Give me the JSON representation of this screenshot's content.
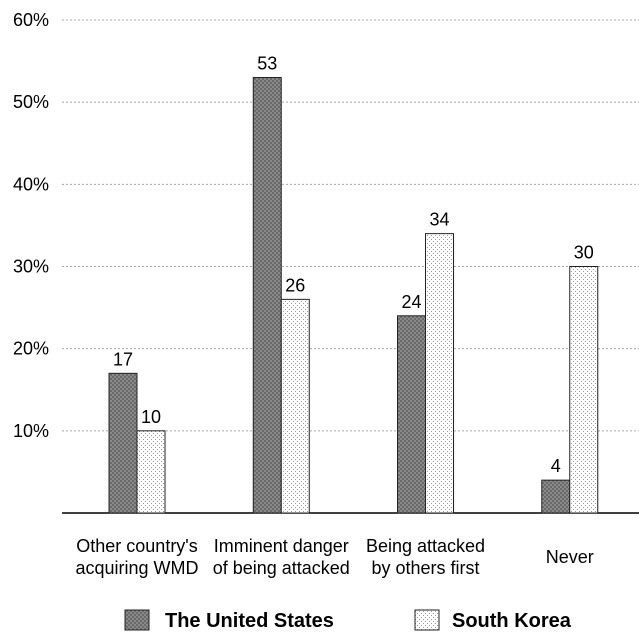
{
  "chart_data": {
    "type": "bar",
    "categories": [
      [
        "Other country's",
        "acquiring WMD"
      ],
      [
        "Imminent danger",
        "of being attacked"
      ],
      [
        "Being attacked",
        "by others first"
      ],
      [
        "Never"
      ]
    ],
    "series": [
      {
        "name": "The United States",
        "values": [
          17,
          53,
          24,
          4
        ],
        "labels": [
          "17",
          "53",
          "24",
          "4"
        ],
        "fill": "dark-dotted"
      },
      {
        "name": "South Korea",
        "values": [
          10,
          26,
          34,
          30
        ],
        "labels": [
          "10",
          "26",
          "34",
          "30"
        ],
        "fill": "light-dotted"
      }
    ],
    "yticks": [
      10,
      20,
      30,
      40,
      50,
      60
    ],
    "ytick_labels": [
      "10%",
      "20%",
      "30%",
      "40%",
      "50%",
      "60%"
    ],
    "ylim": [
      0,
      60
    ],
    "grid": true,
    "legend_position": "bottom",
    "title": "",
    "xlabel": "",
    "ylabel": ""
  }
}
